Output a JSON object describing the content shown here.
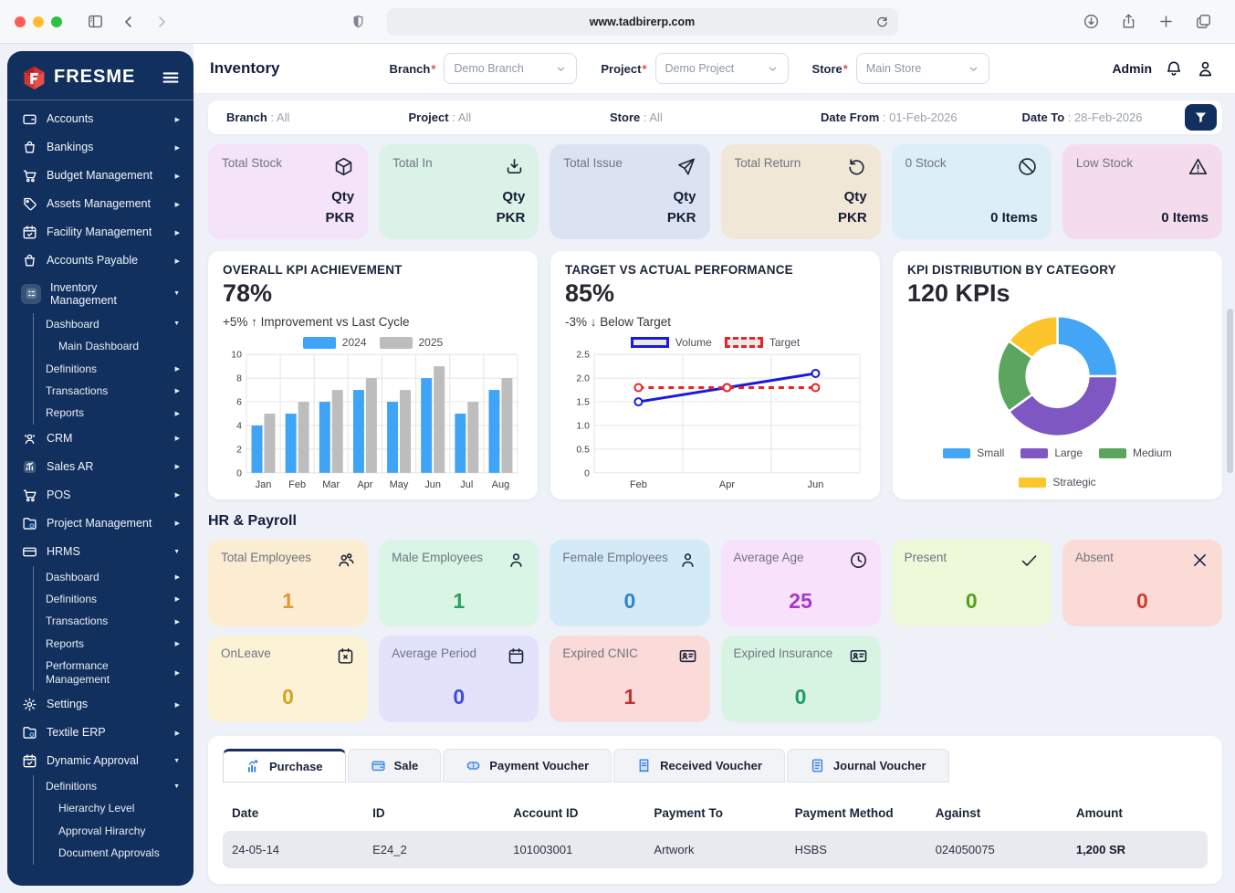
{
  "browser": {
    "url": "www.tadbirerp.com"
  },
  "colors": {
    "sidebar_bg": "#12305e",
    "accent_blue": "#2f7fe0",
    "navy": "#141d3d",
    "logo_red": "#d6332f"
  },
  "sidebar": {
    "logo_text": "FRESME",
    "items": [
      {
        "label": "Accounts",
        "icon": "wallet",
        "chevron": "right"
      },
      {
        "label": "Bankings",
        "icon": "bag",
        "chevron": "right"
      },
      {
        "label": "Budget Management",
        "icon": "cart",
        "chevron": "right"
      },
      {
        "label": "Assets Management",
        "icon": "tag",
        "chevron": "right"
      },
      {
        "label": "Facility Management",
        "icon": "calendar-check",
        "chevron": "right"
      },
      {
        "label": "Accounts Payable",
        "icon": "bag",
        "chevron": "right"
      },
      {
        "label": "Inventory Management",
        "icon": "tasks",
        "chevron": "down",
        "active": true,
        "children": [
          {
            "label": "Dashboard",
            "chevron": "down",
            "children": [
              {
                "label": "Main Dashboard"
              }
            ]
          },
          {
            "label": "Definitions",
            "chevron": "right"
          },
          {
            "label": "Transactions",
            "chevron": "right"
          },
          {
            "label": "Reports",
            "chevron": "right"
          }
        ]
      },
      {
        "label": "CRM",
        "icon": "users",
        "chevron": "right"
      },
      {
        "label": "Sales AR",
        "icon": "chart",
        "chevron": "right"
      },
      {
        "label": "POS",
        "icon": "cart",
        "chevron": "right"
      },
      {
        "label": "Project Management",
        "icon": "folder-gear",
        "chevron": "right"
      },
      {
        "label": "HRMS",
        "icon": "card",
        "chevron": "down",
        "children": [
          {
            "label": "Dashboard",
            "chevron": "right"
          },
          {
            "label": "Definitions",
            "chevron": "right"
          },
          {
            "label": "Transactions",
            "chevron": "right"
          },
          {
            "label": "Reports",
            "chevron": "right"
          },
          {
            "label": "Performance Management",
            "chevron": "right"
          }
        ]
      },
      {
        "label": "Settings",
        "icon": "gear",
        "chevron": "right"
      },
      {
        "label": "Textile ERP",
        "icon": "folder-gear",
        "chevron": "right"
      },
      {
        "label": "Dynamic Approval",
        "icon": "calendar-check",
        "chevron": "down",
        "children": [
          {
            "label": "Definitions",
            "chevron": "down",
            "children": [
              {
                "label": "Hierarchy Level"
              },
              {
                "label": "Approval Hirarchy"
              },
              {
                "label": "Document Approvals"
              }
            ]
          }
        ]
      }
    ]
  },
  "header": {
    "title": "Inventory",
    "required_mark": "*",
    "selects": [
      {
        "label": "Branch",
        "value": "Demo Branch"
      },
      {
        "label": "Project",
        "value": "Demo Project"
      },
      {
        "label": "Store",
        "value": "Main Store"
      }
    ],
    "user_label": "Admin"
  },
  "filter_bar": {
    "separator": " : ",
    "filters": [
      {
        "label": "Branch",
        "value": "All"
      },
      {
        "label": "Project",
        "value": "All"
      },
      {
        "label": "Store",
        "value": "All"
      },
      {
        "label": "Date From",
        "value": "01-Feb-2026"
      },
      {
        "label": "Date To",
        "value": "28-Feb-2026"
      }
    ]
  },
  "stat_cards": [
    {
      "label": "Total Stock",
      "icon": "box",
      "lines": [
        "Qty",
        "PKR"
      ],
      "bg": "#f4e3f9"
    },
    {
      "label": "Total In",
      "icon": "download",
      "lines": [
        "Qty",
        "PKR"
      ],
      "bg": "#dbf2e6"
    },
    {
      "label": "Total Issue",
      "icon": "send",
      "lines": [
        "Qty",
        "PKR"
      ],
      "bg": "#dbe3f2"
    },
    {
      "label": "Total Return",
      "icon": "rotate",
      "lines": [
        "Qty",
        "PKR"
      ],
      "bg": "#f1e7d7"
    },
    {
      "label": "0 Stock",
      "icon": "ban",
      "lines": [
        "0 Items"
      ],
      "bg": "#dceef6"
    },
    {
      "label": "Low Stock",
      "icon": "warning",
      "lines": [
        "0 Items"
      ],
      "bg": "#f4dcec"
    }
  ],
  "chart_data": [
    {
      "type": "bar",
      "title": "OVERALL KPI ACHIEVEMENT",
      "big_value": "78%",
      "subtitle": "+5% ↑ Improvement vs Last Cycle",
      "categories": [
        "Jan",
        "Feb",
        "Mar",
        "Apr",
        "May",
        "Jun",
        "Jul",
        "Aug"
      ],
      "series": [
        {
          "name": "2024",
          "color": "#3fa3f6",
          "values": [
            4,
            5,
            6,
            7,
            6,
            8,
            5,
            7
          ]
        },
        {
          "name": "2025",
          "color": "#bdbdbd",
          "values": [
            5,
            6,
            7,
            8,
            7,
            9,
            6,
            8
          ]
        }
      ],
      "ylim": [
        0,
        10
      ],
      "yticks": [
        0,
        2,
        4,
        6,
        8,
        10
      ],
      "grid": true,
      "legend_position": "top"
    },
    {
      "type": "line",
      "title": "TARGET VS ACTUAL PERFORMANCE",
      "big_value": "85%",
      "subtitle": "-3% ↓ Below Target",
      "x": [
        "Feb",
        "Apr",
        "Jun"
      ],
      "series": [
        {
          "name": "Volume",
          "color": "#1a1adf",
          "style": "solid",
          "values": [
            1.5,
            1.8,
            2.1
          ]
        },
        {
          "name": "Target",
          "color": "#ea2424",
          "style": "dashed",
          "values": [
            1.8,
            1.8,
            1.8
          ]
        }
      ],
      "ylim": [
        0,
        2.5
      ],
      "yticks": [
        0,
        0.5,
        1.0,
        1.5,
        2.0,
        2.5
      ],
      "grid": true,
      "legend_position": "top"
    },
    {
      "type": "pie",
      "donut": true,
      "title": "KPI DISTRIBUTION BY CATEGORY",
      "big_value": "120 KPIs",
      "slices": [
        {
          "label": "Small",
          "value": 25,
          "color": "#42a5f5"
        },
        {
          "label": "Large",
          "value": 40,
          "color": "#7e57c2"
        },
        {
          "label": "Medium",
          "value": 20,
          "color": "#5ba55e"
        },
        {
          "label": "Strategic",
          "value": 15,
          "color": "#fcc52c"
        }
      ],
      "legend_position": "bottom"
    }
  ],
  "hr_section": {
    "heading": "HR & Payroll",
    "cards_row1": [
      {
        "label": "Total Employees",
        "icon": "users2",
        "value": "1",
        "bg": "#fcecd2",
        "value_color": "#dd9a33"
      },
      {
        "label": "Male Employees",
        "icon": "user",
        "value": "1",
        "bg": "#d8f5e6",
        "value_color": "#2ba05f"
      },
      {
        "label": "Female Employees",
        "icon": "user",
        "value": "0",
        "bg": "#d4eaf7",
        "value_color": "#2e86c8"
      },
      {
        "label": "Average Age",
        "icon": "clock",
        "value": "25",
        "bg": "#f8e1fa",
        "value_color": "#a838ca"
      },
      {
        "label": "Present",
        "icon": "check",
        "value": "0",
        "bg": "#eef9da",
        "value_color": "#55a11e"
      },
      {
        "label": "Absent",
        "icon": "x",
        "value": "0",
        "bg": "#fbdbd6",
        "value_color": "#d23a2e"
      }
    ],
    "cards_row2": [
      {
        "label": "OnLeave",
        "icon": "calendar-x",
        "value": "0",
        "bg": "#fcf2d5",
        "value_color": "#d8a21c"
      },
      {
        "label": "Average Period",
        "icon": "calendar",
        "value": "0",
        "bg": "#e2e3fa",
        "value_color": "#3d4ed8"
      },
      {
        "label": "Expired CNIC",
        "icon": "id-card",
        "value": "1",
        "bg": "#fbdada",
        "value_color": "#c23232"
      },
      {
        "label": "Expired Insurance",
        "icon": "id-card",
        "value": "0",
        "bg": "#d7f4e3",
        "value_color": "#1e9e63"
      }
    ]
  },
  "bottom_panel": {
    "tabs": [
      {
        "label": "Purchase",
        "icon": "bar-chart",
        "active": true
      },
      {
        "label": "Sale",
        "icon": "wallet2",
        "active": false
      },
      {
        "label": "Payment Voucher",
        "icon": "ticket",
        "active": false
      },
      {
        "label": "Received Voucher",
        "icon": "receipt",
        "active": false
      },
      {
        "label": "Journal Voucher",
        "icon": "journal",
        "active": false
      }
    ],
    "table": {
      "columns": [
        "Date",
        "ID",
        "Account ID",
        "Payment To",
        "Payment Method",
        "Against",
        "Amount"
      ],
      "rows": [
        [
          "24-05-14",
          "E24_2",
          "101003001",
          "Artwork",
          "HSBS",
          "024050075",
          "1,200 SR"
        ]
      ]
    }
  }
}
